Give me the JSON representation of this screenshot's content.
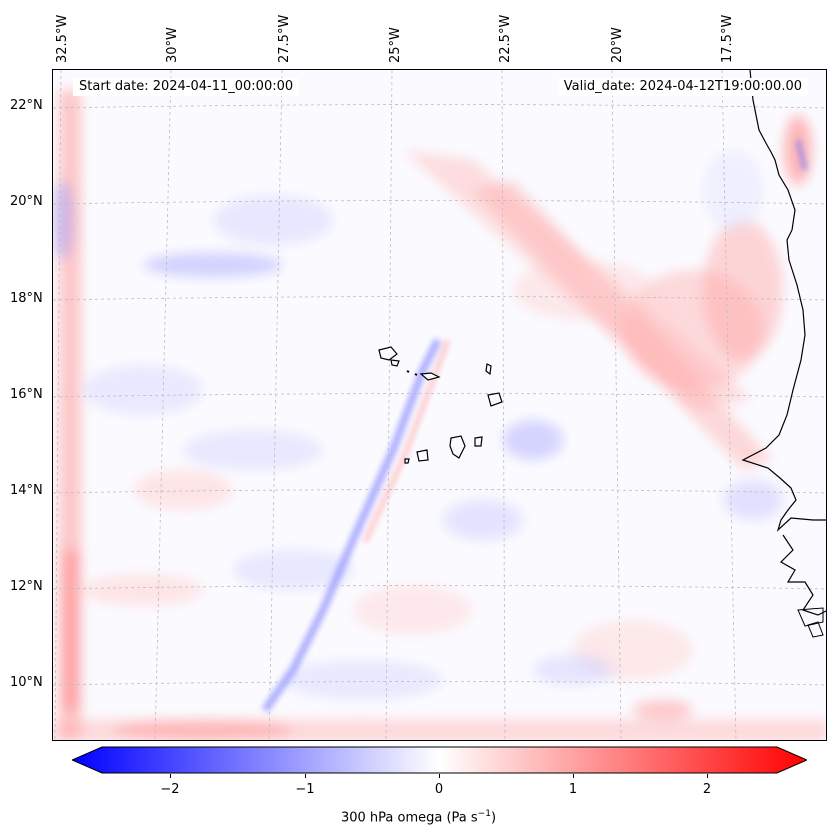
{
  "map": {
    "start_date": "Start date: 2024-04-11_00:00:00",
    "valid_date": "Valid_date: 2024-04-12T19:00:00.00",
    "lon_labels": [
      "32.5°W",
      "30°W",
      "27.5°W",
      "25°W",
      "22.5°W",
      "20°W",
      "17.5°W"
    ],
    "lat_labels": [
      "22°N",
      "20°N",
      "18°N",
      "16°N",
      "14°N",
      "12°N",
      "10°N"
    ],
    "extent": {
      "lon_min": -33.0,
      "lon_max": -15.7,
      "lat_min": 8.9,
      "lat_max": 22.7
    },
    "field_colors": {
      "neg": "#0000ff",
      "zero": "#ffffff",
      "pos": "#ff0000"
    }
  },
  "colorbar": {
    "label_main": "300 hPa omega (Pa s",
    "label_sup": "−1",
    "label_end": ")",
    "ticks": [
      "−2",
      "−1",
      "0",
      "1",
      "2"
    ],
    "tick_values": [
      -2,
      -1,
      0,
      1,
      2
    ],
    "range": [
      -2.75,
      2.75
    ]
  }
}
